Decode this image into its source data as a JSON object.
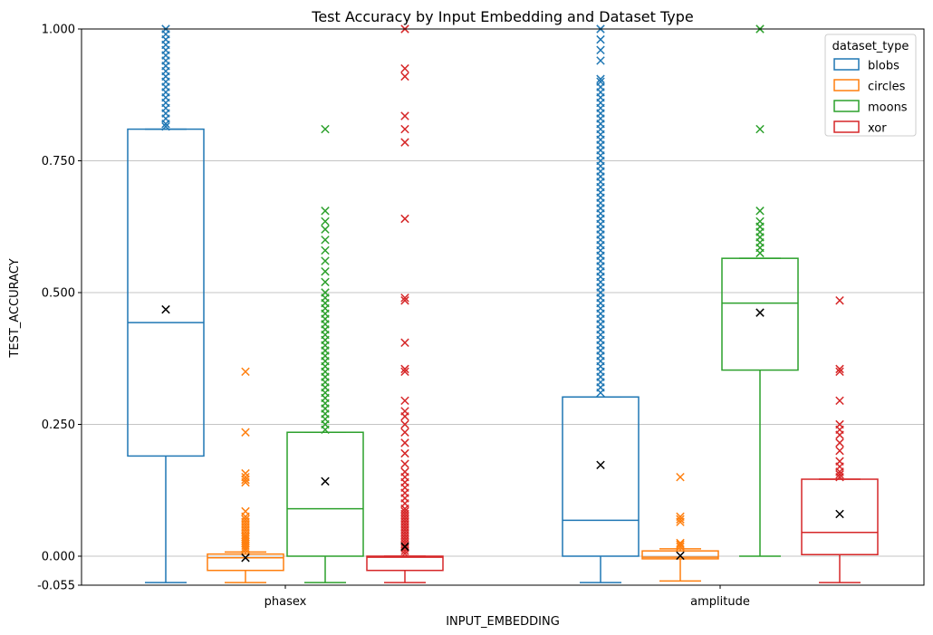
{
  "chart_data": {
    "type": "box",
    "title": "Test Accuracy by Input Embedding and Dataset Type",
    "xlabel": "INPUT_EMBEDDING",
    "ylabel": "TEST_ACCURACY",
    "ylim": [
      -0.055,
      1.0
    ],
    "y_ticks": [
      "-0.055",
      "0.000",
      "0.250",
      "0.500",
      "0.750",
      "1.000"
    ],
    "y_tick_values": [
      -0.055,
      0.0,
      0.25,
      0.5,
      0.75,
      1.0
    ],
    "grid": "horizontal",
    "categories": [
      "phasex",
      "amplitude"
    ],
    "legend": {
      "title": "dataset_type",
      "position": "top-right"
    },
    "series": [
      {
        "name": "blobs",
        "color": "#1f77b4",
        "boxes": [
          {
            "category": "phasex",
            "whisker_low": -0.05,
            "q1": 0.19,
            "median": 0.443,
            "q3": 0.81,
            "whisker_high": 0.81,
            "mean": 0.468,
            "outliers": [
              0.815,
              0.82,
              0.83,
              0.84,
              0.85,
              0.86,
              0.87,
              0.88,
              0.89,
              0.9,
              0.91,
              0.92,
              0.93,
              0.94,
              0.95,
              0.96,
              0.97,
              0.98,
              0.99,
              1.0
            ]
          },
          {
            "category": "amplitude",
            "whisker_low": -0.05,
            "q1": 0.0,
            "median": 0.068,
            "q3": 0.302,
            "whisker_high": 0.302,
            "mean": 0.173,
            "outliers": [
              0.31,
              0.32,
              0.33,
              0.34,
              0.35,
              0.36,
              0.37,
              0.38,
              0.39,
              0.4,
              0.41,
              0.42,
              0.43,
              0.44,
              0.45,
              0.46,
              0.47,
              0.48,
              0.49,
              0.5,
              0.51,
              0.52,
              0.53,
              0.54,
              0.55,
              0.56,
              0.57,
              0.58,
              0.59,
              0.6,
              0.61,
              0.62,
              0.63,
              0.64,
              0.65,
              0.66,
              0.67,
              0.68,
              0.69,
              0.7,
              0.71,
              0.72,
              0.73,
              0.74,
              0.75,
              0.76,
              0.77,
              0.78,
              0.79,
              0.8,
              0.81,
              0.82,
              0.83,
              0.84,
              0.85,
              0.86,
              0.87,
              0.88,
              0.89,
              0.9,
              0.905,
              0.94,
              0.96,
              0.98,
              1.0
            ]
          }
        ]
      },
      {
        "name": "circles",
        "color": "#ff7f0e",
        "boxes": [
          {
            "category": "phasex",
            "whisker_low": -0.05,
            "q1": -0.027,
            "median": -0.003,
            "q3": 0.004,
            "whisker_high": 0.008,
            "mean": -0.003,
            "outliers": [
              0.012,
              0.016,
              0.02,
              0.024,
              0.028,
              0.032,
              0.036,
              0.04,
              0.045,
              0.05,
              0.055,
              0.06,
              0.065,
              0.07,
              0.075,
              0.085,
              0.14,
              0.145,
              0.15,
              0.157,
              0.235,
              0.35
            ]
          },
          {
            "category": "amplitude",
            "whisker_low": -0.047,
            "q1": -0.005,
            "median": -0.002,
            "q3": 0.01,
            "whisker_high": 0.014,
            "mean": 0.001,
            "outliers": [
              0.018,
              0.022,
              0.025,
              0.065,
              0.07,
              0.075,
              0.15
            ]
          }
        ]
      },
      {
        "name": "moons",
        "color": "#2ca02c",
        "boxes": [
          {
            "category": "phasex",
            "whisker_low": -0.05,
            "q1": 0.0,
            "median": 0.09,
            "q3": 0.235,
            "whisker_high": 0.235,
            "mean": 0.142,
            "outliers": [
              0.24,
              0.25,
              0.26,
              0.27,
              0.28,
              0.29,
              0.3,
              0.31,
              0.32,
              0.33,
              0.34,
              0.35,
              0.36,
              0.37,
              0.38,
              0.39,
              0.4,
              0.41,
              0.42,
              0.43,
              0.44,
              0.45,
              0.46,
              0.47,
              0.48,
              0.49,
              0.5,
              0.52,
              0.54,
              0.56,
              0.58,
              0.6,
              0.62,
              0.635,
              0.655,
              0.81
            ]
          },
          {
            "category": "amplitude",
            "whisker_low": 0.0,
            "q1": 0.353,
            "median": 0.48,
            "q3": 0.565,
            "whisker_high": 0.565,
            "mean": 0.462,
            "outliers": [
              0.575,
              0.585,
              0.595,
              0.605,
              0.615,
              0.625,
              0.635,
              0.655,
              0.81,
              1.0
            ]
          }
        ]
      },
      {
        "name": "xor",
        "color": "#d62728",
        "boxes": [
          {
            "category": "phasex",
            "whisker_low": -0.05,
            "q1": -0.027,
            "median": -0.002,
            "q3": 0.0,
            "whisker_high": 0.0,
            "mean": 0.018,
            "outliers": [
              0.005,
              0.01,
              0.015,
              0.02,
              0.025,
              0.03,
              0.035,
              0.04,
              0.045,
              0.05,
              0.055,
              0.06,
              0.065,
              0.07,
              0.075,
              0.08,
              0.085,
              0.09,
              0.1,
              0.11,
              0.12,
              0.13,
              0.14,
              0.15,
              0.16,
              0.175,
              0.195,
              0.215,
              0.235,
              0.25,
              0.265,
              0.275,
              0.295,
              0.35,
              0.355,
              0.405,
              0.485,
              0.49,
              0.64,
              0.785,
              0.81,
              0.835,
              0.91,
              0.925,
              1.0
            ]
          },
          {
            "category": "amplitude",
            "whisker_low": -0.05,
            "q1": 0.003,
            "median": 0.045,
            "q3": 0.146,
            "whisker_high": 0.146,
            "mean": 0.08,
            "outliers": [
              0.15,
              0.155,
              0.16,
              0.17,
              0.18,
              0.2,
              0.215,
              0.23,
              0.24,
              0.25,
              0.295,
              0.35,
              0.355,
              0.485
            ]
          }
        ]
      }
    ]
  }
}
